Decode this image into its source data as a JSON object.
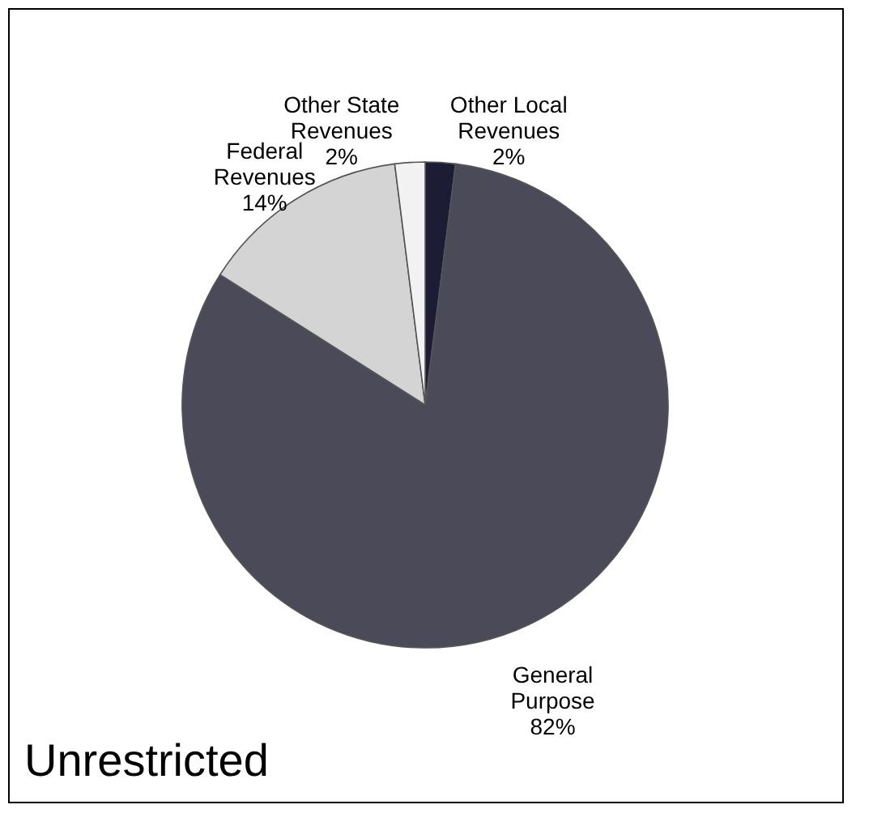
{
  "chart_data": {
    "type": "pie",
    "categories": [
      "Other Local Revenues",
      "General Purpose",
      "Federal Revenues",
      "Other State Revenues"
    ],
    "values": [
      2,
      82,
      14,
      2
    ],
    "value_labels": [
      "2%",
      "82%",
      "14%",
      "2%"
    ],
    "colors": [
      "#1c1c34",
      "#4a4a58",
      "#d4d4d4",
      "#f2f2f2"
    ],
    "annotations": [
      "Unrestricted"
    ],
    "legend": false
  }
}
